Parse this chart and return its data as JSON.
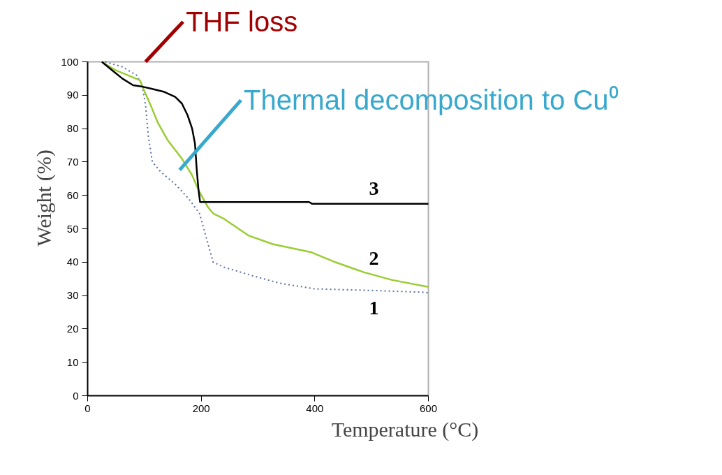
{
  "chart_data": {
    "type": "line",
    "xlabel": "Temperature (°C)",
    "ylabel": "Weight (%)",
    "xlim": [
      0,
      600
    ],
    "xticks": [
      0,
      200,
      400,
      600
    ],
    "ylim": [
      0,
      100
    ],
    "yticks": [
      0,
      10,
      20,
      30,
      40,
      50,
      60,
      70,
      80,
      90,
      100
    ],
    "grid": false,
    "legend": false,
    "marker": "none",
    "series": [
      {
        "name": "1",
        "color": "#5a6ea0",
        "line_style": "dotted",
        "x": [
          31,
          61,
          86,
          96,
          102,
          107,
          114,
          129,
          154,
          178,
          197,
          209,
          221,
          240,
          289,
          338,
          400,
          486,
          590,
          600
        ],
        "values": [
          100,
          98.5,
          96,
          93,
          87,
          77.6,
          70,
          67,
          63.4,
          59,
          54.6,
          47.3,
          40,
          38.5,
          36,
          33.7,
          32,
          31.6,
          31,
          30.8
        ]
      },
      {
        "name": "2",
        "color": "#9acd32",
        "line_style": "solid",
        "x": [
          25,
          49,
          92,
          98,
          111,
          123,
          141,
          166,
          184,
          197,
          211,
          221,
          240,
          283,
          326,
          393,
          436,
          486,
          535,
          600
        ],
        "values": [
          100,
          97.5,
          94.5,
          92,
          87,
          82,
          76.5,
          71,
          66,
          61,
          56.7,
          54.6,
          53,
          48,
          45.4,
          43,
          40,
          37,
          34.7,
          32.6
        ]
      },
      {
        "name": "3",
        "color": "#000000",
        "line_style": "solid",
        "x": [
          25,
          43,
          61,
          80,
          98,
          111,
          135,
          154,
          166,
          176,
          184,
          189,
          192,
          195,
          198,
          390,
          395,
          600
        ],
        "values": [
          100,
          97.5,
          95,
          93,
          92.5,
          92,
          91,
          89.5,
          87.5,
          84,
          80,
          75.5,
          68,
          62,
          58,
          58,
          57.5,
          57.5
        ]
      }
    ],
    "annotations": [
      "THF loss",
      "Thermal decomposition to Cu⁰"
    ]
  }
}
